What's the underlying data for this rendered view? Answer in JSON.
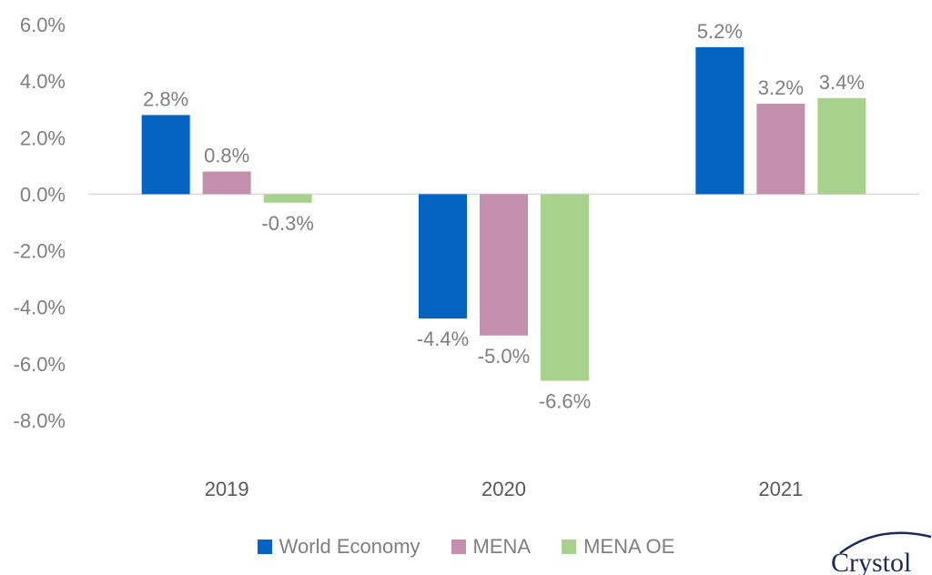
{
  "chart_data": {
    "type": "bar",
    "title": "",
    "xlabel": "",
    "ylabel": "",
    "categories": [
      "2019",
      "2020",
      "2021"
    ],
    "series": [
      {
        "name": "World Economy",
        "color": "#0563C1",
        "values": [
          2.8,
          -4.4,
          5.2
        ],
        "labels": [
          "2.8%",
          "-4.4%",
          "5.2%"
        ]
      },
      {
        "name": "MENA",
        "color": "#C48FAC",
        "values": [
          0.8,
          -5.0,
          3.2
        ],
        "labels": [
          "0.8%",
          "-5.0%",
          "3.2%"
        ]
      },
      {
        "name": "MENA OE",
        "color": "#A9D18E",
        "values": [
          -0.3,
          -6.6,
          3.4
        ],
        "labels": [
          "-0.3%",
          "-6.6%",
          "3.4%"
        ]
      }
    ],
    "ylim": [
      -8,
      6
    ],
    "yticks": [
      6,
      4,
      2,
      0,
      -2,
      -4,
      -6,
      -8
    ],
    "ytick_labels": [
      "6.0%",
      "4.0%",
      "2.0%",
      "0.0%",
      "-2.0%",
      "-4.0%",
      "-6.0%",
      "-8.0%"
    ],
    "grid": false,
    "legend_position": "bottom"
  },
  "legend": {
    "items": [
      {
        "label": "World Economy",
        "color": "#0563C1"
      },
      {
        "label": "MENA",
        "color": "#C48FAC"
      },
      {
        "label": "MENA OE",
        "color": "#A9D18E"
      }
    ]
  },
  "logo": {
    "text": "Crystol",
    "color": "#1F2A5C",
    "accent": "#C89B3C"
  }
}
